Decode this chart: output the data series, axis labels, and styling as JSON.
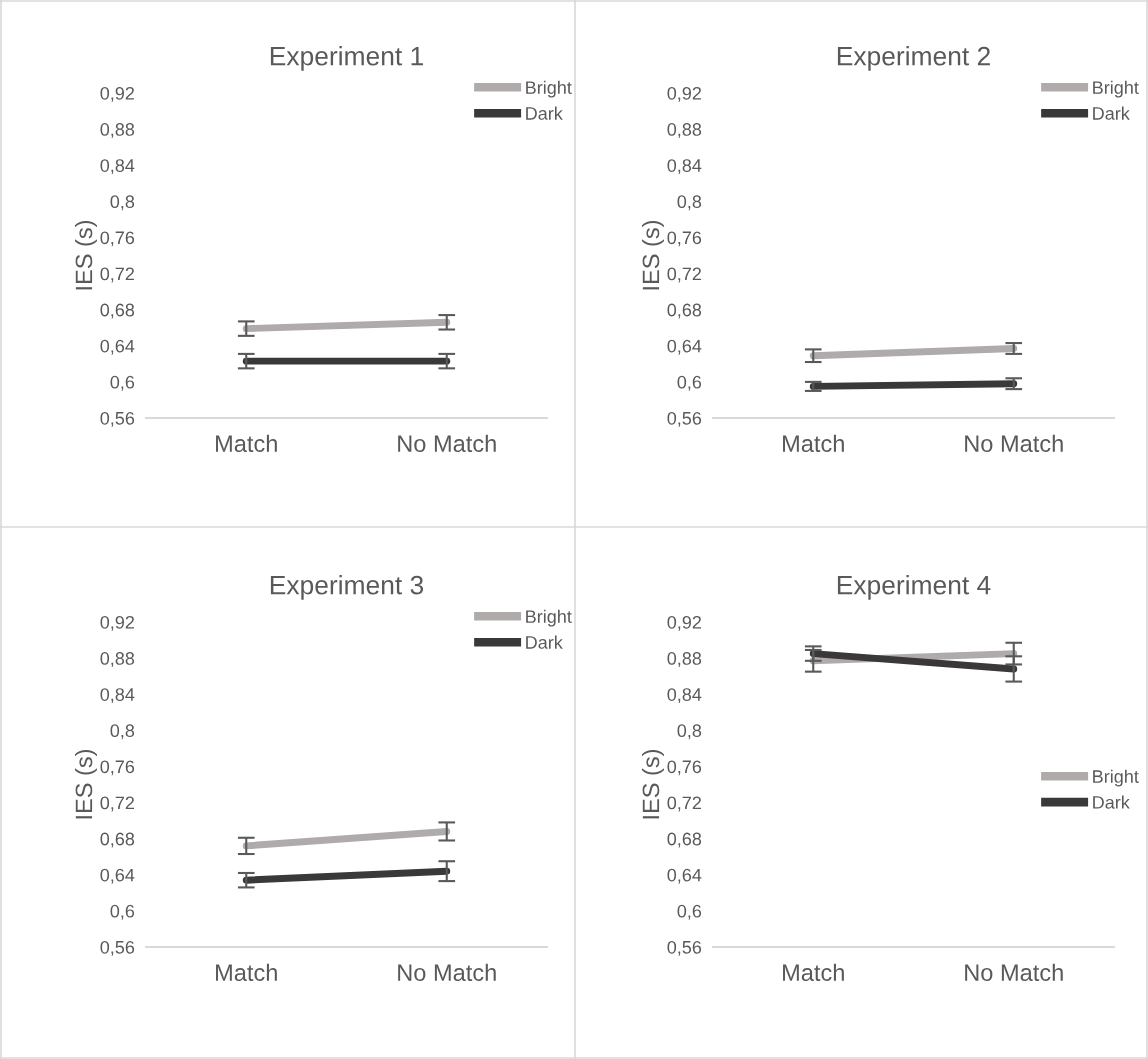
{
  "chart_data": [
    {
      "type": "line",
      "title": "Experiment 1",
      "ylabel": "IES (s)",
      "categories": [
        "Match",
        "No Match"
      ],
      "series": [
        {
          "name": "Bright",
          "color": "#afabab",
          "values": [
            0.659,
            0.666
          ],
          "errors": [
            0.008,
            0.008
          ]
        },
        {
          "name": "Dark",
          "color": "#3a3838",
          "values": [
            0.623,
            0.623
          ],
          "errors": [
            0.008,
            0.008
          ]
        }
      ],
      "ylim": [
        0.56,
        0.92
      ],
      "yticks": [
        {
          "value": 0.56,
          "label": "0,56"
        },
        {
          "value": 0.6,
          "label": "0,6"
        },
        {
          "value": 0.64,
          "label": "0,64"
        },
        {
          "value": 0.68,
          "label": "0,68"
        },
        {
          "value": 0.72,
          "label": "0,72"
        },
        {
          "value": 0.76,
          "label": "0,76"
        },
        {
          "value": 0.8,
          "label": "0,8"
        },
        {
          "value": 0.84,
          "label": "0,84"
        },
        {
          "value": 0.88,
          "label": "0,88"
        },
        {
          "value": 0.92,
          "label": "0,92"
        }
      ],
      "legend": "top right",
      "grid": false,
      "marker": "none",
      "line_style": "solid"
    },
    {
      "type": "line",
      "title": "Experiment 2",
      "ylabel": "IES (s)",
      "categories": [
        "Match",
        "No Match"
      ],
      "series": [
        {
          "name": "Bright",
          "color": "#afabab",
          "values": [
            0.629,
            0.637
          ],
          "errors": [
            0.007,
            0.006
          ]
        },
        {
          "name": "Dark",
          "color": "#3a3838",
          "values": [
            0.595,
            0.598
          ],
          "errors": [
            0.005,
            0.006
          ]
        }
      ],
      "ylim": [
        0.56,
        0.92
      ],
      "yticks": [
        {
          "value": 0.56,
          "label": "0,56"
        },
        {
          "value": 0.6,
          "label": "0,6"
        },
        {
          "value": 0.64,
          "label": "0,64"
        },
        {
          "value": 0.68,
          "label": "0,68"
        },
        {
          "value": 0.72,
          "label": "0,72"
        },
        {
          "value": 0.76,
          "label": "0,76"
        },
        {
          "value": 0.8,
          "label": "0,8"
        },
        {
          "value": 0.84,
          "label": "0,84"
        },
        {
          "value": 0.88,
          "label": "0,88"
        },
        {
          "value": 0.92,
          "label": "0,92"
        }
      ],
      "legend": "top right",
      "grid": false,
      "marker": "none",
      "line_style": "solid"
    },
    {
      "type": "line",
      "title": "Experiment 3",
      "ylabel": "IES (s)",
      "categories": [
        "Match",
        "No Match"
      ],
      "series": [
        {
          "name": "Bright",
          "color": "#afabab",
          "values": [
            0.672,
            0.688
          ],
          "errors": [
            0.009,
            0.01
          ]
        },
        {
          "name": "Dark",
          "color": "#3a3838",
          "values": [
            0.634,
            0.644
          ],
          "errors": [
            0.008,
            0.011
          ]
        }
      ],
      "ylim": [
        0.56,
        0.92
      ],
      "yticks": [
        {
          "value": 0.56,
          "label": "0,56"
        },
        {
          "value": 0.6,
          "label": "0,6"
        },
        {
          "value": 0.64,
          "label": "0,64"
        },
        {
          "value": 0.68,
          "label": "0,68"
        },
        {
          "value": 0.72,
          "label": "0,72"
        },
        {
          "value": 0.76,
          "label": "0,76"
        },
        {
          "value": 0.8,
          "label": "0,8"
        },
        {
          "value": 0.84,
          "label": "0,84"
        },
        {
          "value": 0.88,
          "label": "0,88"
        },
        {
          "value": 0.92,
          "label": "0,92"
        }
      ],
      "legend": "top right",
      "grid": false,
      "marker": "none",
      "line_style": "solid"
    },
    {
      "type": "line",
      "title": "Experiment 4",
      "ylabel": "IES (s)",
      "categories": [
        "Match",
        "No Match"
      ],
      "series": [
        {
          "name": "Bright",
          "color": "#afabab",
          "values": [
            0.877,
            0.885
          ],
          "errors": [
            0.012,
            0.012
          ]
        },
        {
          "name": "Dark",
          "color": "#3a3838",
          "values": [
            0.885,
            0.868
          ],
          "errors": [
            0.008,
            0.014
          ]
        }
      ],
      "ylim": [
        0.56,
        0.92
      ],
      "yticks": [
        {
          "value": 0.56,
          "label": "0,56"
        },
        {
          "value": 0.6,
          "label": "0,6"
        },
        {
          "value": 0.64,
          "label": "0,64"
        },
        {
          "value": 0.68,
          "label": "0,68"
        },
        {
          "value": 0.72,
          "label": "0,72"
        },
        {
          "value": 0.76,
          "label": "0,76"
        },
        {
          "value": 0.8,
          "label": "0,8"
        },
        {
          "value": 0.84,
          "label": "0,84"
        },
        {
          "value": 0.88,
          "label": "0,88"
        },
        {
          "value": 0.92,
          "label": "0,92"
        }
      ],
      "legend": "right",
      "grid": false,
      "marker": "none",
      "line_style": "solid"
    }
  ]
}
